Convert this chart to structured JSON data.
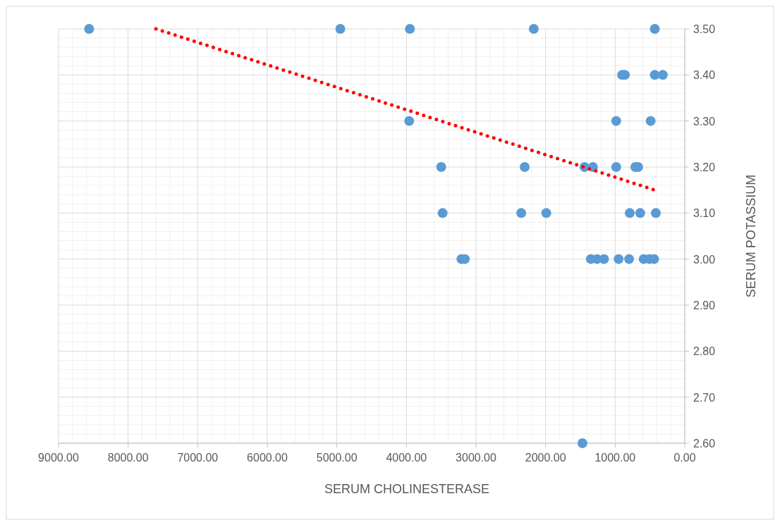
{
  "chart_data": {
    "type": "scatter",
    "xlabel": "SERUM CHOLINESTERASE",
    "ylabel": "SERUM POTASSIUM",
    "xlim": [
      9000,
      0
    ],
    "xticks": [
      {
        "value": 9000,
        "label": "9000.00"
      },
      {
        "value": 8000,
        "label": "8000.00"
      },
      {
        "value": 7000,
        "label": "7000.00"
      },
      {
        "value": 6000,
        "label": "6000.00"
      },
      {
        "value": 5000,
        "label": "5000.00"
      },
      {
        "value": 4000,
        "label": "4000.00"
      },
      {
        "value": 3000,
        "label": "3000.00"
      },
      {
        "value": 2000,
        "label": "2000.00"
      },
      {
        "value": 1000,
        "label": "1000.00"
      },
      {
        "value": 0,
        "label": "0.00"
      }
    ],
    "ylim": [
      2.6,
      3.5
    ],
    "yticks": [
      {
        "value": 2.6,
        "label": "2.60"
      },
      {
        "value": 2.7,
        "label": "2.70"
      },
      {
        "value": 2.8,
        "label": "2.80"
      },
      {
        "value": 2.9,
        "label": "2.90"
      },
      {
        "value": 3.0,
        "label": "3.00"
      },
      {
        "value": 3.1,
        "label": "3.10"
      },
      {
        "value": 3.2,
        "label": "3.20"
      },
      {
        "value": 3.3,
        "label": "3.30"
      },
      {
        "value": 3.4,
        "label": "3.40"
      },
      {
        "value": 3.5,
        "label": "3.50"
      }
    ],
    "grid": true,
    "marker": "circle",
    "series": [
      {
        "color": "#5b9bd5",
        "x": [
          8560,
          4950,
          3950,
          2170,
          430,
          900,
          860,
          430,
          315,
          985,
          3960,
          490,
          3500,
          2300,
          1440,
          1320,
          985,
          710,
          670,
          3480,
          2350,
          1990,
          790,
          640,
          415,
          3210,
          3160,
          1350,
          1260,
          1160,
          950,
          800,
          590,
          510,
          440,
          1470
        ],
        "values": [
          3.5,
          3.5,
          3.5,
          3.5,
          3.5,
          3.4,
          3.4,
          3.4,
          3.4,
          3.3,
          3.3,
          3.3,
          3.2,
          3.2,
          3.2,
          3.2,
          3.2,
          3.2,
          3.2,
          3.1,
          3.1,
          3.1,
          3.1,
          3.1,
          3.1,
          3.0,
          3.0,
          3.0,
          3.0,
          3.0,
          3.0,
          3.0,
          3.0,
          3.0,
          3.0,
          2.6
        ]
      },
      {
        "type": "line",
        "color": "#ff0000",
        "line_style": "dotted",
        "marker": "none",
        "x": [
          7600,
          430
        ],
        "values": [
          3.5,
          3.15
        ]
      }
    ]
  }
}
